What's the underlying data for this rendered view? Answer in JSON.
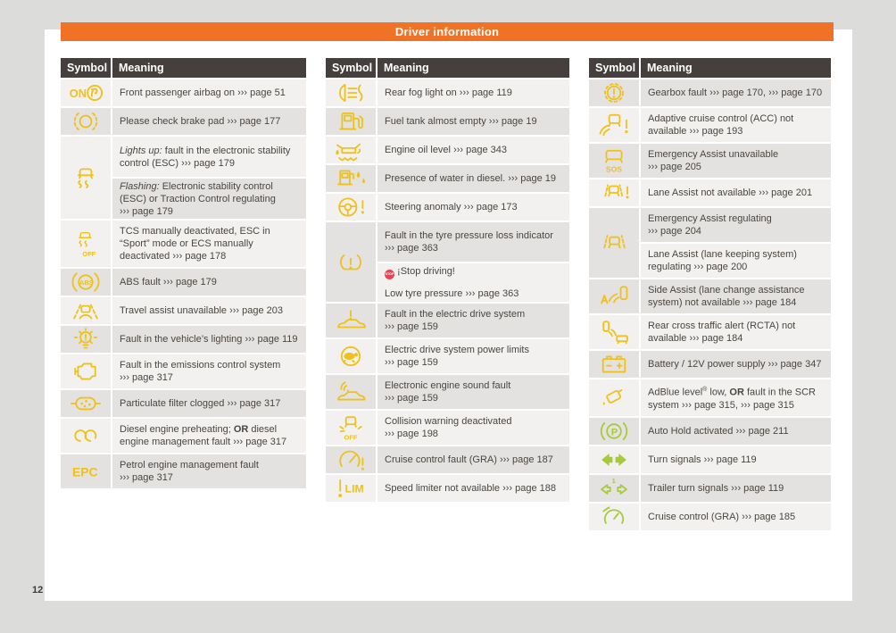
{
  "banner": {
    "title": "Driver information"
  },
  "page_number": "12",
  "columns": {
    "symbol": "Symbol",
    "meaning": "Meaning"
  },
  "colors": {
    "accent_orange": "#f07226",
    "table_header_gray": "#45403d",
    "icon_yellow": "#eec11d",
    "icon_green": "#a6ca3d",
    "stop_badge_red": "#e0485a",
    "page_background": "#ffffff",
    "margin_background": "#dcdcdb"
  },
  "tables": [
    {
      "rows": [
        {
          "icon": "airbag-on-icon",
          "cells": [
            [
              [
                [
                  "Front passenger airbag on ",
                  "n"
                ],
                [
                  "››› page 51",
                  "r"
                ]
              ]
            ]
          ]
        },
        {
          "icon": "brake-pad-icon",
          "cells": [
            [
              [
                [
                  "Please check brake pad ",
                  "n"
                ],
                [
                  "››› page 177",
                  "r"
                ]
              ]
            ]
          ]
        },
        {
          "icon": "esc-icon",
          "cells": [
            [
              [
                [
                  "Lights up:",
                  "i"
                ],
                [
                  " fault in the electronic stability control (ESC) ",
                  "n"
                ],
                [
                  "››› page 179",
                  "r"
                ]
              ]
            ],
            [
              [
                [
                  "Flashing:",
                  "i"
                ],
                [
                  " Electronic stability control (ESC) or Traction Control regulating ",
                  "n"
                ],
                [
                  "››› page 179",
                  "r"
                ]
              ]
            ]
          ]
        },
        {
          "icon": "esc-off-icon",
          "cells": [
            [
              [
                [
                  "TCS manually deactivated, ESC in “Sport” mode or ECS manually deactivated ",
                  "n"
                ],
                [
                  "››› page 178",
                  "r"
                ]
              ]
            ]
          ]
        },
        {
          "icon": "abs-icon",
          "cells": [
            [
              [
                [
                  "ABS fault ",
                  "n"
                ],
                [
                  "››› page 179",
                  "r"
                ]
              ]
            ]
          ]
        },
        {
          "icon": "travel-assist-icon",
          "cells": [
            [
              [
                [
                  "Travel assist unavailable ",
                  "n"
                ],
                [
                  "››› page 203",
                  "r"
                ]
              ]
            ]
          ]
        },
        {
          "icon": "light-fault-icon",
          "cells": [
            [
              [
                [
                  "Fault in the vehicle’s lighting ",
                  "n"
                ],
                [
                  "››› page 119",
                  "r"
                ]
              ]
            ]
          ]
        },
        {
          "icon": "emissions-icon",
          "cells": [
            [
              [
                [
                  "Fault in the emissions control system ",
                  "n"
                ],
                [
                  "››› page 317",
                  "r"
                ]
              ]
            ]
          ]
        },
        {
          "icon": "particulate-filter-icon",
          "cells": [
            [
              [
                [
                  "Particulate filter clogged ",
                  "n"
                ],
                [
                  "››› page 317",
                  "r"
                ]
              ]
            ]
          ]
        },
        {
          "icon": "glow-plug-icon",
          "cells": [
            [
              [
                [
                  "Diesel engine preheating; ",
                  "n"
                ],
                [
                  "OR",
                  "b"
                ],
                [
                  " diesel engine management fault ",
                  "n"
                ],
                [
                  "››› page 317",
                  "r"
                ]
              ]
            ]
          ]
        },
        {
          "icon": "epc-icon",
          "cells": [
            [
              [
                [
                  "Petrol engine management fault ",
                  "n"
                ],
                [
                  "››› page 317",
                  "r"
                ]
              ]
            ]
          ]
        }
      ]
    },
    {
      "rows": [
        {
          "icon": "rear-fog-icon",
          "cells": [
            [
              [
                [
                  "Rear fog light on ",
                  "n"
                ],
                [
                  "››› page 119",
                  "r"
                ]
              ]
            ]
          ]
        },
        {
          "icon": "fuel-low-icon",
          "cells": [
            [
              [
                [
                  "Fuel tank almost empty ",
                  "n"
                ],
                [
                  "››› page 19",
                  "r"
                ]
              ]
            ]
          ]
        },
        {
          "icon": "oil-level-icon",
          "cells": [
            [
              [
                [
                  "Engine oil level ",
                  "n"
                ],
                [
                  "››› page 343",
                  "r"
                ]
              ]
            ]
          ]
        },
        {
          "icon": "water-in-diesel-icon",
          "cells": [
            [
              [
                [
                  "Presence of water in diesel. ",
                  "n"
                ],
                [
                  "››› page 19",
                  "r"
                ]
              ]
            ]
          ]
        },
        {
          "icon": "steering-fault-icon",
          "cells": [
            [
              [
                [
                  "Steering anomaly ",
                  "n"
                ],
                [
                  "››› page 173",
                  "r"
                ]
              ]
            ]
          ]
        },
        {
          "icon": "tyre-pressure-icon",
          "cells": [
            [
              [
                [
                  "Fault in the tyre pressure loss indicator ",
                  "n"
                ],
                [
                  "››› page 363",
                  "r"
                ]
              ]
            ],
            [
              [
                [
                  "STOP",
                  "stop"
                ],
                [
                  " ¡Stop driving!",
                  "n"
                ]
              ],
              [
                [
                  "Low tyre pressure ",
                  "n"
                ],
                [
                  "››› page 363",
                  "r"
                ]
              ]
            ]
          ]
        },
        {
          "icon": "electric-drive-fault-icon",
          "cells": [
            [
              [
                [
                  "Fault in the electric drive system ",
                  "n"
                ],
                [
                  "››› page 159",
                  "r"
                ]
              ]
            ]
          ]
        },
        {
          "icon": "power-limit-turtle-icon",
          "cells": [
            [
              [
                [
                  "Electric drive system power limits ",
                  "n"
                ],
                [
                  "››› page 159",
                  "r"
                ]
              ]
            ]
          ]
        },
        {
          "icon": "engine-sound-icon",
          "cells": [
            [
              [
                [
                  "Electronic engine sound fault ",
                  "n"
                ],
                [
                  "››› page 159",
                  "r"
                ]
              ]
            ]
          ]
        },
        {
          "icon": "collision-warning-off-icon",
          "cells": [
            [
              [
                [
                  "Collision warning deactivated ",
                  "n"
                ],
                [
                  "››› page 198",
                  "r"
                ]
              ]
            ]
          ]
        },
        {
          "icon": "cruise-fault-icon",
          "cells": [
            [
              [
                [
                  "Cruise control fault (GRA) ",
                  "n"
                ],
                [
                  "››› page 187",
                  "r"
                ]
              ]
            ]
          ]
        },
        {
          "icon": "speed-limiter-icon",
          "cells": [
            [
              [
                [
                  "Speed limiter not available ",
                  "n"
                ],
                [
                  "››› page 188",
                  "r"
                ]
              ]
            ]
          ]
        }
      ]
    },
    {
      "rows": [
        {
          "icon": "gearbox-fault-icon",
          "cells": [
            [
              [
                [
                  "Gearbox fault ",
                  "n"
                ],
                [
                  "››› page 170",
                  "r"
                ],
                [
                  ", ",
                  "n"
                ],
                [
                  "››› page 170",
                  "r"
                ]
              ]
            ]
          ]
        },
        {
          "icon": "acc-unavailable-icon",
          "cells": [
            [
              [
                [
                  "Adaptive cruise control (ACC) not available ",
                  "n"
                ],
                [
                  "››› page 193",
                  "r"
                ]
              ]
            ]
          ]
        },
        {
          "icon": "emergency-assist-sos-icon",
          "cells": [
            [
              [
                [
                  "Emergency Assist unavailable ",
                  "n"
                ],
                [
                  "››› page 205",
                  "r"
                ]
              ]
            ]
          ]
        },
        {
          "icon": "lane-assist-unavailable-icon",
          "cells": [
            [
              [
                [
                  "Lane Assist not available ",
                  "n"
                ],
                [
                  "››› page 201",
                  "r"
                ]
              ]
            ]
          ]
        },
        {
          "icon": "lane-assist-regulating-icon",
          "cells": [
            [
              [
                [
                  "Emergency Assist regulating ",
                  "n"
                ],
                [
                  "››› page 204",
                  "r"
                ]
              ]
            ],
            [
              [
                [
                  "Lane Assist (lane keeping system) regulating ",
                  "n"
                ],
                [
                  "››› page 200",
                  "r"
                ]
              ]
            ]
          ]
        },
        {
          "icon": "side-assist-icon",
          "cells": [
            [
              [
                [
                  "Side Assist (lane change assistance system) not available ",
                  "n"
                ],
                [
                  "››› page 184",
                  "r"
                ]
              ]
            ]
          ]
        },
        {
          "icon": "rcta-icon",
          "cells": [
            [
              [
                [
                  "Rear cross traffic alert (RCTA) not available ",
                  "n"
                ],
                [
                  "››› page 184",
                  "r"
                ]
              ]
            ]
          ]
        },
        {
          "icon": "battery-icon",
          "cells": [
            [
              [
                [
                  "Battery / 12V power supply ",
                  "n"
                ],
                [
                  "››› page 347",
                  "r"
                ]
              ]
            ]
          ]
        },
        {
          "icon": "adblue-icon",
          "cells": [
            [
              [
                [
                  "AdBlue level",
                  "n"
                ],
                [
                  "®",
                  "sup"
                ],
                [
                  " low, ",
                  "n"
                ],
                [
                  "OR",
                  "b"
                ],
                [
                  " fault in the SCR system ",
                  "n"
                ],
                [
                  "››› page 315",
                  "r"
                ],
                [
                  ", ",
                  "n"
                ],
                [
                  "››› page 315",
                  "r"
                ]
              ]
            ]
          ]
        },
        {
          "icon": "auto-hold-icon",
          "icon_color": "green",
          "cells": [
            [
              [
                [
                  "Auto Hold activated ",
                  "n"
                ],
                [
                  "››› page 211",
                  "r"
                ]
              ]
            ]
          ]
        },
        {
          "icon": "turn-signals-icon",
          "icon_color": "green",
          "cells": [
            [
              [
                [
                  "Turn signals ",
                  "n"
                ],
                [
                  "››› page 119",
                  "r"
                ]
              ]
            ]
          ]
        },
        {
          "icon": "trailer-turn-signals-icon",
          "icon_color": "green",
          "cells": [
            [
              [
                [
                  "Trailer turn signals ",
                  "n"
                ],
                [
                  "››› page 119",
                  "r"
                ]
              ]
            ]
          ]
        },
        {
          "icon": "cruise-control-icon",
          "icon_color": "green",
          "cells": [
            [
              [
                [
                  "Cruise control (GRA) ",
                  "n"
                ],
                [
                  "››› page 185",
                  "r"
                ]
              ]
            ]
          ]
        }
      ]
    }
  ]
}
